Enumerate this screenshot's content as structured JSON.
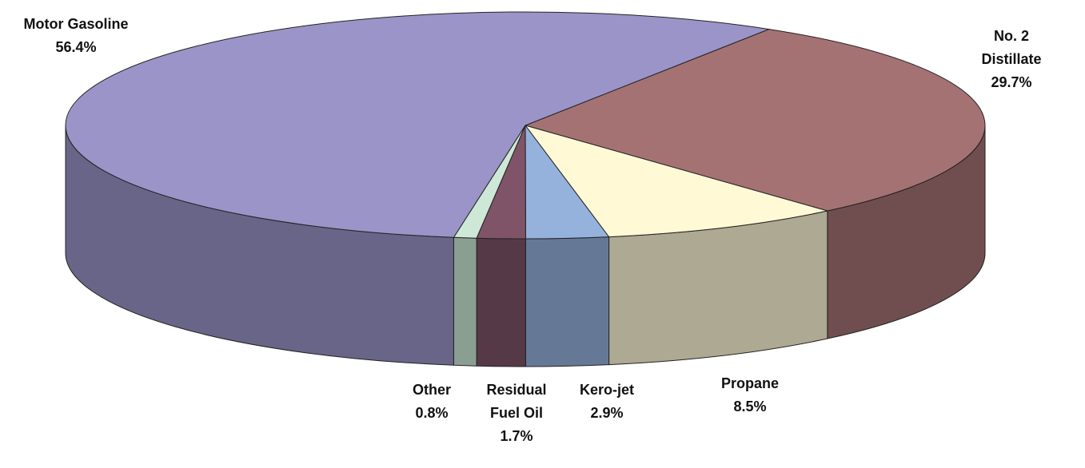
{
  "chart_data": {
    "type": "pie",
    "categories": [
      "No. 2 Distillate",
      "Propane",
      "Kero-jet",
      "Residual Fuel Oil",
      "Other",
      "Motor Gasoline"
    ],
    "values": [
      29.7,
      8.5,
      2.9,
      1.7,
      0.8,
      56.4
    ],
    "value_labels": [
      "29.7%",
      "8.5%",
      "2.9%",
      "1.7%",
      "0.8%",
      "56.4%"
    ],
    "colors": [
      "#a57274",
      "#fff9d6",
      "#95b2dc",
      "#7f5468",
      "#cde8d6",
      "#9b94c8"
    ]
  }
}
